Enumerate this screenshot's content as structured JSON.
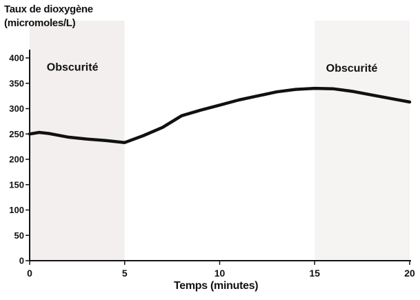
{
  "chart_data": {
    "type": "line",
    "ylabel_line1": "Taux de dioxygène",
    "ylabel_line2": "(micromoles/L)",
    "xlabel": "Temps (minutes)",
    "xlim": [
      0,
      20
    ],
    "ylim": [
      0,
      400
    ],
    "x_ticks": [
      0,
      5,
      10,
      15,
      20
    ],
    "y_ticks": [
      0,
      50,
      100,
      150,
      200,
      250,
      300,
      350,
      400
    ],
    "grid": false,
    "dark_periods": [
      [
        0,
        5
      ],
      [
        15,
        20
      ]
    ],
    "annotations": [
      {
        "text": "Obscurité",
        "x": 0.9,
        "y": 375
      },
      {
        "text": "Obscurité",
        "x": 15.6,
        "y": 373
      }
    ],
    "series": [
      {
        "x": [
          0,
          0.5,
          1,
          2,
          3,
          4,
          5,
          6,
          7,
          8,
          9,
          10,
          11,
          12,
          13,
          14,
          15,
          16,
          17,
          18,
          19,
          20
        ],
        "y": [
          250,
          253,
          251,
          244,
          240,
          237,
          233,
          247,
          263,
          286,
          297,
          307,
          317,
          325,
          333,
          338,
          340,
          339,
          334,
          327,
          320,
          313
        ]
      }
    ]
  }
}
